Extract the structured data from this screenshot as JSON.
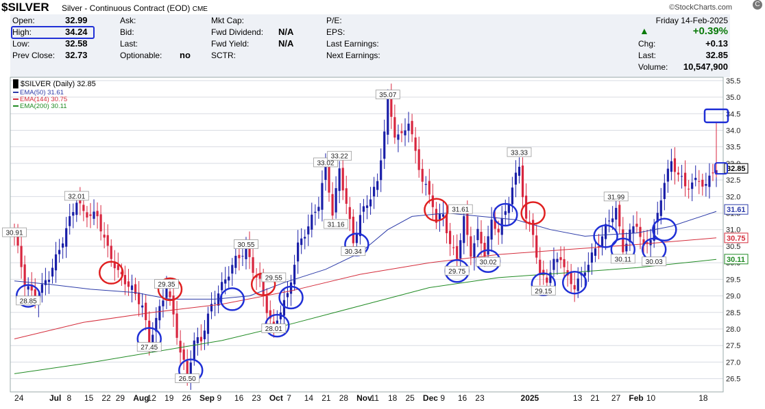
{
  "header": {
    "symbol": "$SILVER",
    "description": "Silver - Continuous Contract (EOD)",
    "exchange": "CME",
    "brand": "©StockCharts.com",
    "date": "Friday  14-Feb-2025"
  },
  "quote": {
    "open_label": "Open:",
    "open": "32.99",
    "high_label": "High:",
    "high": "34.24",
    "low_label": "Low:",
    "low": "32.58",
    "prev_label": "Prev Close:",
    "prev": "32.73",
    "ask_label": "Ask:",
    "bid_label": "Bid:",
    "last_label": "Last:",
    "optionable_label": "Optionable:",
    "optionable": "no",
    "mktcap_label": "Mkt Cap:",
    "fwddiv_label": "Fwd Dividend:",
    "fwddiv": "N/A",
    "fwdyield_label": "Fwd Yield:",
    "fwdyield": "N/A",
    "sctr_label": "SCTR:",
    "pe_label": "P/E:",
    "eps_label": "EPS:",
    "lastearn_label": "Last Earnings:",
    "nextearn_label": "Next Earnings:",
    "pct_change": "+0.39%",
    "chg_label": "Chg:",
    "chg": "+0.13",
    "last_right_label": "Last:",
    "last_right": "32.85",
    "volume_label": "Volume:",
    "volume": "10,547,900"
  },
  "colors": {
    "up": "#1a1fa8",
    "down": "#d8263f",
    "ema50": "#2b3aa8",
    "ema144": "#d42b3a",
    "ema200": "#1f8a22",
    "circle_blue": "#1f2fd6",
    "circle_red": "#e02020",
    "grid": "#d8dbe2",
    "background": "#ffffff"
  },
  "chart_data": {
    "type": "candlestick",
    "title": "$SILVER (Daily) 32.85",
    "ylim": [
      26.1,
      35.6
    ],
    "y_ticks": [
      26.5,
      27.0,
      27.5,
      28.0,
      28.5,
      29.0,
      29.5,
      30.0,
      30.5,
      31.0,
      31.5,
      32.0,
      32.5,
      33.0,
      33.5,
      34.0,
      34.5,
      35.0,
      35.5
    ],
    "x_ticks": [
      "24",
      "Jul",
      "8",
      "15",
      "22",
      "29",
      "Aug",
      "12",
      "19",
      "26",
      "Sep",
      "9",
      "16",
      "23",
      "Oct",
      "7",
      "14",
      "21",
      "28",
      "Nov",
      "11",
      "18",
      "25",
      "Dec",
      "9",
      "16",
      "23",
      "2025",
      "13",
      "21",
      "27",
      "Feb",
      "10",
      "18"
    ],
    "x_tick_bold": [
      "Jul",
      "Aug",
      "Sep",
      "Oct",
      "Nov",
      "Dec",
      "2025",
      "Feb"
    ],
    "legend": [
      {
        "name": "EMA(50) 31.61",
        "color": "#2b3aa8"
      },
      {
        "name": "EMA(144) 30.75",
        "color": "#d42b3a"
      },
      {
        "name": "EMA(200) 30.11",
        "color": "#1f8a22"
      }
    ],
    "close_points": [
      [
        0,
        30.9
      ],
      [
        3,
        29.4
      ],
      [
        6,
        28.9
      ],
      [
        10,
        29.6
      ],
      [
        13,
        30.4
      ],
      [
        16,
        31.3
      ],
      [
        18,
        31.9
      ],
      [
        20,
        31.5
      ],
      [
        24,
        31.4
      ],
      [
        27,
        30.4
      ],
      [
        30,
        29.7
      ],
      [
        34,
        29.2
      ],
      [
        37,
        28.7
      ],
      [
        39,
        27.6
      ],
      [
        42,
        28.6
      ],
      [
        44,
        29.3
      ],
      [
        46,
        28.4
      ],
      [
        48,
        27.3
      ],
      [
        50,
        26.6
      ],
      [
        52,
        27.6
      ],
      [
        54,
        27.7
      ],
      [
        57,
        28.7
      ],
      [
        60,
        29.3
      ],
      [
        64,
        30.1
      ],
      [
        67,
        30.4
      ],
      [
        69,
        29.8
      ],
      [
        71,
        29.4
      ],
      [
        73,
        28.6
      ],
      [
        75,
        28.0
      ],
      [
        77,
        28.6
      ],
      [
        79,
        29.0
      ],
      [
        82,
        30.5
      ],
      [
        85,
        31.1
      ],
      [
        88,
        31.8
      ],
      [
        90,
        32.9
      ],
      [
        92,
        31.5
      ],
      [
        94,
        32.8
      ],
      [
        96,
        31.8
      ],
      [
        98,
        30.6
      ],
      [
        100,
        31.4
      ],
      [
        103,
        32.0
      ],
      [
        105,
        32.4
      ],
      [
        107,
        34.0
      ],
      [
        108,
        34.9
      ],
      [
        110,
        33.9
      ],
      [
        112,
        33.8
      ],
      [
        114,
        34.3
      ],
      [
        116,
        33.3
      ],
      [
        118,
        32.5
      ],
      [
        121,
        31.8
      ],
      [
        122,
        31.2
      ],
      [
        124,
        31.5
      ],
      [
        126,
        30.5
      ],
      [
        128,
        30.2
      ],
      [
        130,
        31.3
      ],
      [
        132,
        30.3
      ],
      [
        134,
        30.9
      ],
      [
        136,
        30.3
      ],
      [
        138,
        31.2
      ],
      [
        140,
        31.0
      ],
      [
        142,
        31.5
      ],
      [
        144,
        32.3
      ],
      [
        146,
        32.9
      ],
      [
        148,
        31.3
      ],
      [
        150,
        30.9
      ],
      [
        152,
        29.6
      ],
      [
        154,
        29.5
      ],
      [
        156,
        30.0
      ],
      [
        158,
        30.2
      ],
      [
        160,
        29.5
      ],
      [
        162,
        29.3
      ],
      [
        164,
        29.6
      ],
      [
        166,
        30.0
      ],
      [
        168,
        30.4
      ],
      [
        170,
        30.8
      ],
      [
        172,
        31.3
      ],
      [
        174,
        31.6
      ],
      [
        176,
        30.4
      ],
      [
        178,
        30.9
      ],
      [
        180,
        31.2
      ],
      [
        182,
        30.4
      ],
      [
        184,
        30.8
      ],
      [
        186,
        31.4
      ],
      [
        188,
        32.5
      ],
      [
        190,
        33.0
      ],
      [
        192,
        32.7
      ],
      [
        194,
        32.3
      ],
      [
        196,
        32.4
      ],
      [
        198,
        32.5
      ],
      [
        200,
        32.3
      ],
      [
        202,
        32.8
      ],
      [
        203,
        32.85
      ]
    ],
    "ema50": [
      [
        0,
        29.45
      ],
      [
        10,
        29.35
      ],
      [
        22,
        29.2
      ],
      [
        35,
        29.1
      ],
      [
        45,
        28.9
      ],
      [
        58,
        28.9
      ],
      [
        68,
        29.0
      ],
      [
        78,
        29.4
      ],
      [
        90,
        29.8
      ],
      [
        100,
        30.3
      ],
      [
        108,
        31.0
      ],
      [
        115,
        31.4
      ],
      [
        125,
        31.5
      ],
      [
        135,
        31.4
      ],
      [
        145,
        31.3
      ],
      [
        155,
        31.0
      ],
      [
        165,
        30.8
      ],
      [
        172,
        30.85
      ],
      [
        180,
        30.9
      ],
      [
        190,
        31.1
      ],
      [
        203,
        31.55
      ]
    ],
    "ema144": [
      [
        0,
        27.7
      ],
      [
        20,
        28.2
      ],
      [
        40,
        28.5
      ],
      [
        60,
        28.75
      ],
      [
        80,
        29.15
      ],
      [
        100,
        29.65
      ],
      [
        120,
        30.0
      ],
      [
        140,
        30.25
      ],
      [
        160,
        30.4
      ],
      [
        180,
        30.55
      ],
      [
        203,
        30.75
      ]
    ],
    "ema200": [
      [
        0,
        26.65
      ],
      [
        20,
        26.95
      ],
      [
        40,
        27.3
      ],
      [
        60,
        27.65
      ],
      [
        80,
        28.15
      ],
      [
        100,
        28.7
      ],
      [
        120,
        29.25
      ],
      [
        140,
        29.55
      ],
      [
        160,
        29.7
      ],
      [
        180,
        29.85
      ],
      [
        203,
        30.1
      ]
    ],
    "label_values": [
      {
        "text": "30.91",
        "d": 0,
        "v": 30.91
      },
      {
        "text": "32.01",
        "d": 18,
        "v": 32.01
      },
      {
        "text": "28.85",
        "d": 4,
        "v": 28.85
      },
      {
        "text": "27.45",
        "d": 39,
        "v": 27.45
      },
      {
        "text": "29.35",
        "d": 44,
        "v": 29.35
      },
      {
        "text": "26.50",
        "d": 50,
        "v": 26.5
      },
      {
        "text": "30.55",
        "d": 67,
        "v": 30.55
      },
      {
        "text": "29.55",
        "d": 75,
        "v": 29.55
      },
      {
        "text": "28.01",
        "d": 75,
        "v": 28.01
      },
      {
        "text": "33.02",
        "d": 90,
        "v": 33.02
      },
      {
        "text": "33.22",
        "d": 94,
        "v": 33.22
      },
      {
        "text": "31.16",
        "d": 93,
        "v": 31.16
      },
      {
        "text": "30.34",
        "d": 98,
        "v": 30.34
      },
      {
        "text": "35.07",
        "d": 108,
        "v": 35.07
      },
      {
        "text": "31.61",
        "d": 129,
        "v": 31.61
      },
      {
        "text": "29.75",
        "d": 128,
        "v": 29.75
      },
      {
        "text": "30.02",
        "d": 137,
        "v": 30.02
      },
      {
        "text": "33.33",
        "d": 146,
        "v": 33.33
      },
      {
        "text": "29.15",
        "d": 153,
        "v": 29.15
      },
      {
        "text": "31.99",
        "d": 174,
        "v": 31.99
      },
      {
        "text": "30.11",
        "d": 176,
        "v": 30.11
      },
      {
        "text": "30.03",
        "d": 185,
        "v": 30.03
      }
    ],
    "right_labels": [
      {
        "text": "32.85",
        "v": 32.85,
        "color": "#000000"
      },
      {
        "text": "31.61",
        "v": 31.61,
        "color": "#2b3aa8"
      },
      {
        "text": "30.75",
        "v": 30.75,
        "color": "#d42b3a"
      },
      {
        "text": "30.11",
        "v": 30.11,
        "color": "#1f8a22"
      }
    ],
    "circles": [
      {
        "d": 4,
        "v": 29.0,
        "color": "#1f2fd6"
      },
      {
        "d": 28,
        "v": 29.7,
        "color": "#e02020"
      },
      {
        "d": 39,
        "v": 27.7,
        "color": "#1f2fd6"
      },
      {
        "d": 45,
        "v": 29.2,
        "color": "#e02020"
      },
      {
        "d": 51,
        "v": 26.75,
        "color": "#1f2fd6"
      },
      {
        "d": 63,
        "v": 28.9,
        "color": "#1f2fd6"
      },
      {
        "d": 72,
        "v": 29.35,
        "color": "#e02020"
      },
      {
        "d": 76,
        "v": 28.1,
        "color": "#1f2fd6"
      },
      {
        "d": 80,
        "v": 28.95,
        "color": "#1f2fd6"
      },
      {
        "d": 99,
        "v": 30.55,
        "color": "#1f2fd6"
      },
      {
        "d": 122,
        "v": 31.6,
        "color": "#e02020"
      },
      {
        "d": 128,
        "v": 29.75,
        "color": "#1f2fd6"
      },
      {
        "d": 137,
        "v": 30.05,
        "color": "#1f2fd6"
      },
      {
        "d": 142,
        "v": 31.45,
        "color": "#1f2fd6"
      },
      {
        "d": 150,
        "v": 31.5,
        "color": "#e02020"
      },
      {
        "d": 153,
        "v": 29.35,
        "color": "#1f2fd6"
      },
      {
        "d": 162,
        "v": 29.4,
        "color": "#1f2fd6"
      },
      {
        "d": 171,
        "v": 30.8,
        "color": "#1f2fd6"
      },
      {
        "d": 176,
        "v": 30.4,
        "color": "#1f2fd6"
      },
      {
        "d": 185,
        "v": 30.4,
        "color": "#1f2fd6"
      },
      {
        "d": 188,
        "v": 31.0,
        "color": "#1f2fd6"
      }
    ]
  }
}
